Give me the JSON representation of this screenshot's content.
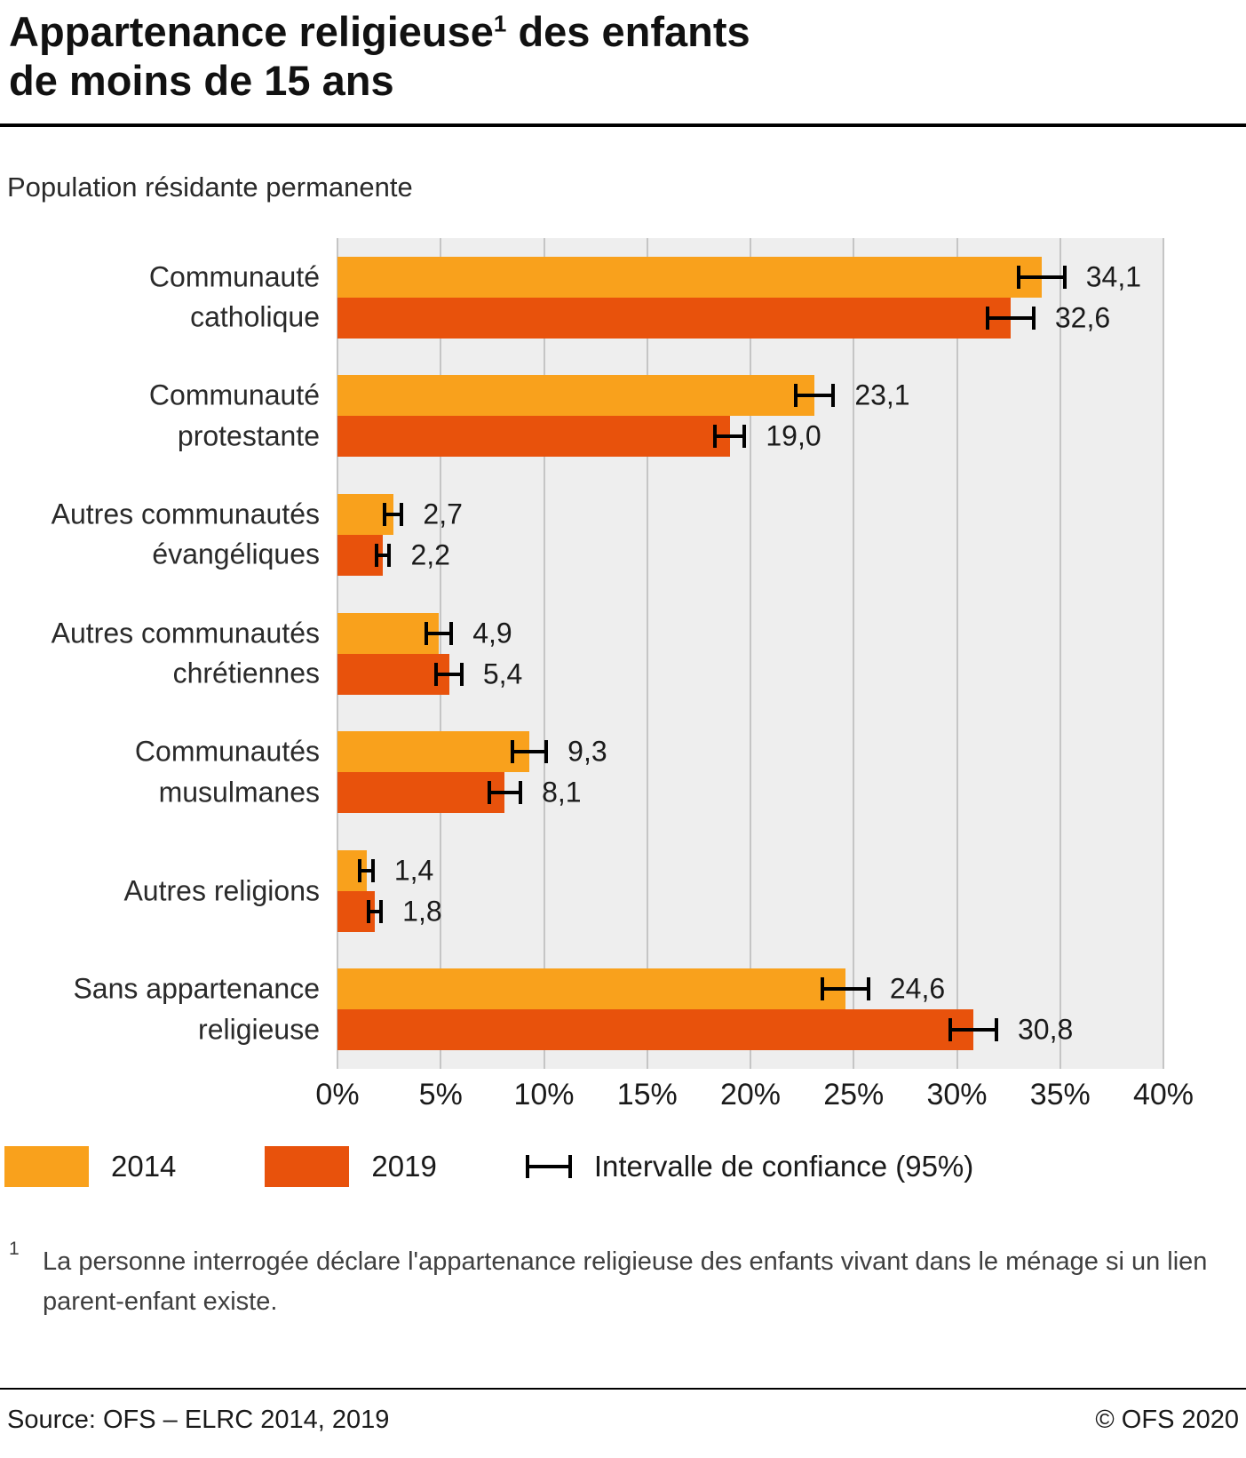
{
  "header": {
    "title_part1": "Appartenance religieuse",
    "title_sup": "1",
    "title_part2": " des enfants",
    "title_line2": "de moins de 15 ans",
    "subtitle": "Population résidante permanente"
  },
  "chart_data": {
    "type": "bar",
    "orientation": "horizontal",
    "title": "Appartenance religieuse des enfants de moins de 15 ans",
    "subtitle": "Population résidante permanente",
    "xlabel": "",
    "ylabel": "",
    "xlim": [
      0,
      40
    ],
    "xticks": [
      "0%",
      "5%",
      "10%",
      "15%",
      "20%",
      "25%",
      "30%",
      "35%",
      "40%"
    ],
    "grid": true,
    "legend_position": "bottom",
    "categories": [
      {
        "label": "Communauté catholique",
        "label_lines": [
          "Communauté",
          "catholique"
        ]
      },
      {
        "label": "Communauté protestante",
        "label_lines": [
          "Communauté",
          "protestante"
        ]
      },
      {
        "label": "Autres communautés évangéliques",
        "label_lines": [
          "Autres communautés",
          "évangéliques"
        ]
      },
      {
        "label": "Autres communautés chrétiennes",
        "label_lines": [
          "Autres communautés",
          "chrétiennes"
        ]
      },
      {
        "label": "Communautés musulmanes",
        "label_lines": [
          "Communautés",
          "musulmanes"
        ]
      },
      {
        "label": "Autres religions",
        "label_lines": [
          "Autres religions"
        ]
      },
      {
        "label": "Sans appartenance religieuse",
        "label_lines": [
          "Sans appartenance",
          "religieuse"
        ]
      }
    ],
    "series": [
      {
        "name": "2014",
        "color": "#F9A11C",
        "values": [
          34.1,
          23.1,
          2.7,
          4.9,
          9.3,
          1.4,
          24.6
        ],
        "labels": [
          "34,1",
          "23,1",
          "2,7",
          "4,9",
          "9,3",
          "1,4",
          "24,6"
        ],
        "ci": [
          1.2,
          1.0,
          0.5,
          0.7,
          0.9,
          0.4,
          1.2
        ]
      },
      {
        "name": "2019",
        "color": "#E8520C",
        "values": [
          32.6,
          19.0,
          2.2,
          5.4,
          8.1,
          1.8,
          30.8
        ],
        "labels": [
          "32,6",
          "19,0",
          "2,2",
          "5,4",
          "8,1",
          "1,8",
          "30,8"
        ],
        "ci": [
          1.2,
          0.8,
          0.4,
          0.7,
          0.85,
          0.4,
          1.2
        ]
      }
    ],
    "legend_ci_label": "Intervalle de confiance (95%)",
    "errorbar_color": "#000000",
    "plot_background": "#eeeeee",
    "gridline_color": "#c5c5c5"
  },
  "footnote": {
    "marker": "1",
    "text": "La personne interrogée déclare l'appartenance religieuse des enfants vivant dans le ménage si un lien parent-enfant existe."
  },
  "footer": {
    "source": "Source: OFS – ELRC 2014, 2019",
    "copyright": "© OFS 2020"
  }
}
